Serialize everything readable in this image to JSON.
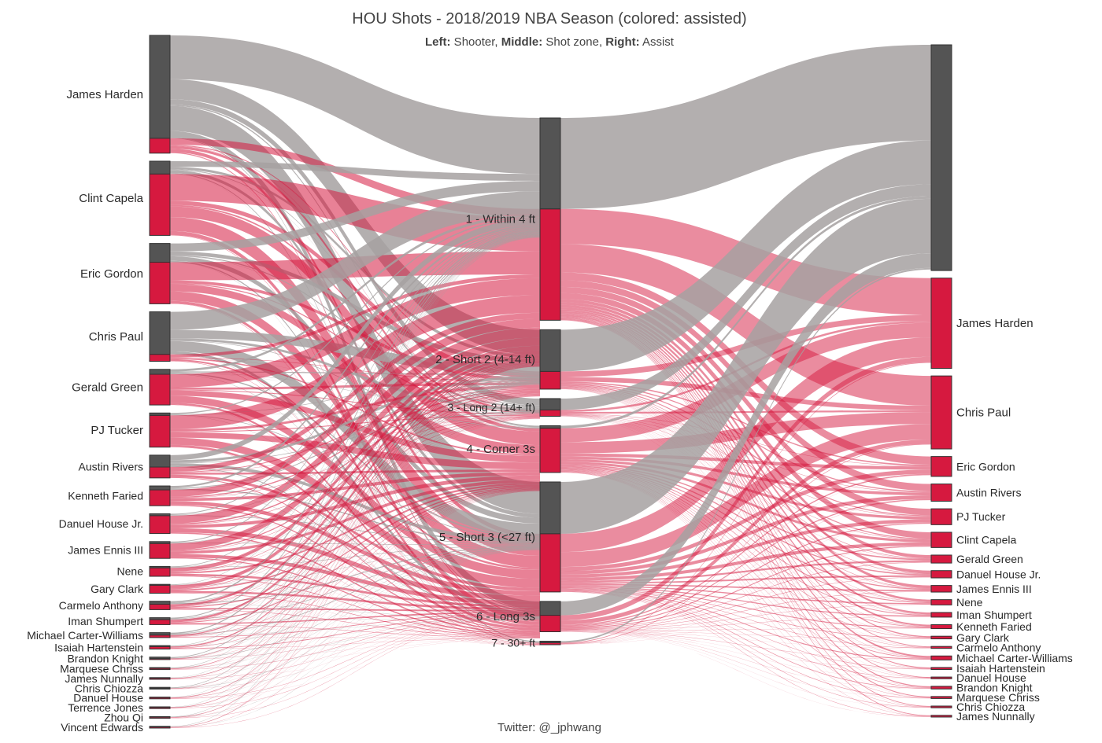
{
  "title": "HOU Shots - 2018/2019 NBA Season (colored: assisted)",
  "subtitle": {
    "left_label": "Left:",
    "left_text": " Shooter, ",
    "middle_label": "Middle:",
    "middle_text": " Shot zone, ",
    "right_label": "Right:",
    "right_text": " Assist"
  },
  "credit": "Twitter: @_jphwang",
  "colors": {
    "unassisted": "#a6a1a1",
    "assisted": "#d6193f",
    "node_unassisted": "#545454",
    "node_border": "#333333"
  },
  "chart_data": {
    "type": "sankey",
    "shooters": [
      {
        "name": "James Harden",
        "unassisted": 1040,
        "assisted": 150
      },
      {
        "name": "Clint Capela",
        "unassisted": 130,
        "assisted": 620
      },
      {
        "name": "Eric Gordon",
        "unassisted": 190,
        "assisted": 420
      },
      {
        "name": "Chris Paul",
        "unassisted": 430,
        "assisted": 70
      },
      {
        "name": "Gerald Green",
        "unassisted": 50,
        "assisted": 310
      },
      {
        "name": "PJ Tucker",
        "unassisted": 25,
        "assisted": 320
      },
      {
        "name": "Austin Rivers",
        "unassisted": 120,
        "assisted": 110
      },
      {
        "name": "Kenneth Faried",
        "unassisted": 40,
        "assisted": 160
      },
      {
        "name": "Danuel House Jr.",
        "unassisted": 20,
        "assisted": 180
      },
      {
        "name": "James Ennis III",
        "unassisted": 20,
        "assisted": 150
      },
      {
        "name": "Nene",
        "unassisted": 15,
        "assisted": 85
      },
      {
        "name": "Gary Clark",
        "unassisted": 10,
        "assisted": 80
      },
      {
        "name": "Carmelo Anthony",
        "unassisted": 30,
        "assisted": 55
      },
      {
        "name": "Iman Shumpert",
        "unassisted": 20,
        "assisted": 50
      },
      {
        "name": "Michael Carter-Williams",
        "unassisted": 25,
        "assisted": 25
      },
      {
        "name": "Isaiah Hartenstein",
        "unassisted": 10,
        "assisted": 25
      },
      {
        "name": "Brandon Knight",
        "unassisted": 15,
        "assisted": 10
      },
      {
        "name": "Marquese Chriss",
        "unassisted": 8,
        "assisted": 12
      },
      {
        "name": "James Nunnally",
        "unassisted": 5,
        "assisted": 10
      },
      {
        "name": "Chris Chiozza",
        "unassisted": 8,
        "assisted": 5
      },
      {
        "name": "Danuel House",
        "unassisted": 3,
        "assisted": 8
      },
      {
        "name": "Terrence Jones",
        "unassisted": 3,
        "assisted": 6
      },
      {
        "name": "Zhou Qi",
        "unassisted": 3,
        "assisted": 5
      },
      {
        "name": "Vincent Edwards",
        "unassisted": 3,
        "assisted": 5
      }
    ],
    "zones": [
      {
        "name": "1 - Within 4 ft",
        "unassisted": 720,
        "assisted": 880
      },
      {
        "name": "2 - Short 2 (4-14 ft)",
        "unassisted": 330,
        "assisted": 140
      },
      {
        "name": "3 - Long 2 (14+ ft)",
        "unassisted": 90,
        "assisted": 50
      },
      {
        "name": "4 - Corner 3s",
        "unassisted": 20,
        "assisted": 350
      },
      {
        "name": "5 - Short 3 (<27 ft)",
        "unassisted": 410,
        "assisted": 460
      },
      {
        "name": "6 - Long 3s",
        "unassisted": 110,
        "assisted": 130
      },
      {
        "name": "7 - 30+ ft",
        "unassisted": 12,
        "assisted": 16
      }
    ],
    "assisters": [
      {
        "name": "",
        "unassisted": 1700,
        "assisted": 0
      },
      {
        "name": "James Harden",
        "unassisted": 0,
        "assisted": 680
      },
      {
        "name": "Chris Paul",
        "unassisted": 0,
        "assisted": 550
      },
      {
        "name": "Eric Gordon",
        "unassisted": 0,
        "assisted": 150
      },
      {
        "name": "Austin Rivers",
        "unassisted": 0,
        "assisted": 130
      },
      {
        "name": "PJ Tucker",
        "unassisted": 0,
        "assisted": 120
      },
      {
        "name": "Clint Capela",
        "unassisted": 0,
        "assisted": 115
      },
      {
        "name": "Gerald Green",
        "unassisted": 0,
        "assisted": 60
      },
      {
        "name": "Danuel House Jr.",
        "unassisted": 0,
        "assisted": 55
      },
      {
        "name": "James Ennis III",
        "unassisted": 0,
        "assisted": 50
      },
      {
        "name": "Nene",
        "unassisted": 0,
        "assisted": 40
      },
      {
        "name": "Iman Shumpert",
        "unassisted": 0,
        "assisted": 35
      },
      {
        "name": "Kenneth Faried",
        "unassisted": 0,
        "assisted": 30
      },
      {
        "name": "Gary Clark",
        "unassisted": 0,
        "assisted": 20
      },
      {
        "name": "Carmelo Anthony",
        "unassisted": 0,
        "assisted": 15
      },
      {
        "name": "Michael Carter-Williams",
        "unassisted": 0,
        "assisted": 30
      },
      {
        "name": "Isaiah Hartenstein",
        "unassisted": 0,
        "assisted": 15
      },
      {
        "name": "Danuel House",
        "unassisted": 0,
        "assisted": 8
      },
      {
        "name": "Brandon Knight",
        "unassisted": 0,
        "assisted": 20
      },
      {
        "name": "Marquese Chriss",
        "unassisted": 0,
        "assisted": 15
      },
      {
        "name": "Chris Chiozza",
        "unassisted": 0,
        "assisted": 12
      },
      {
        "name": "James Nunnally",
        "unassisted": 0,
        "assisted": 8
      }
    ]
  }
}
